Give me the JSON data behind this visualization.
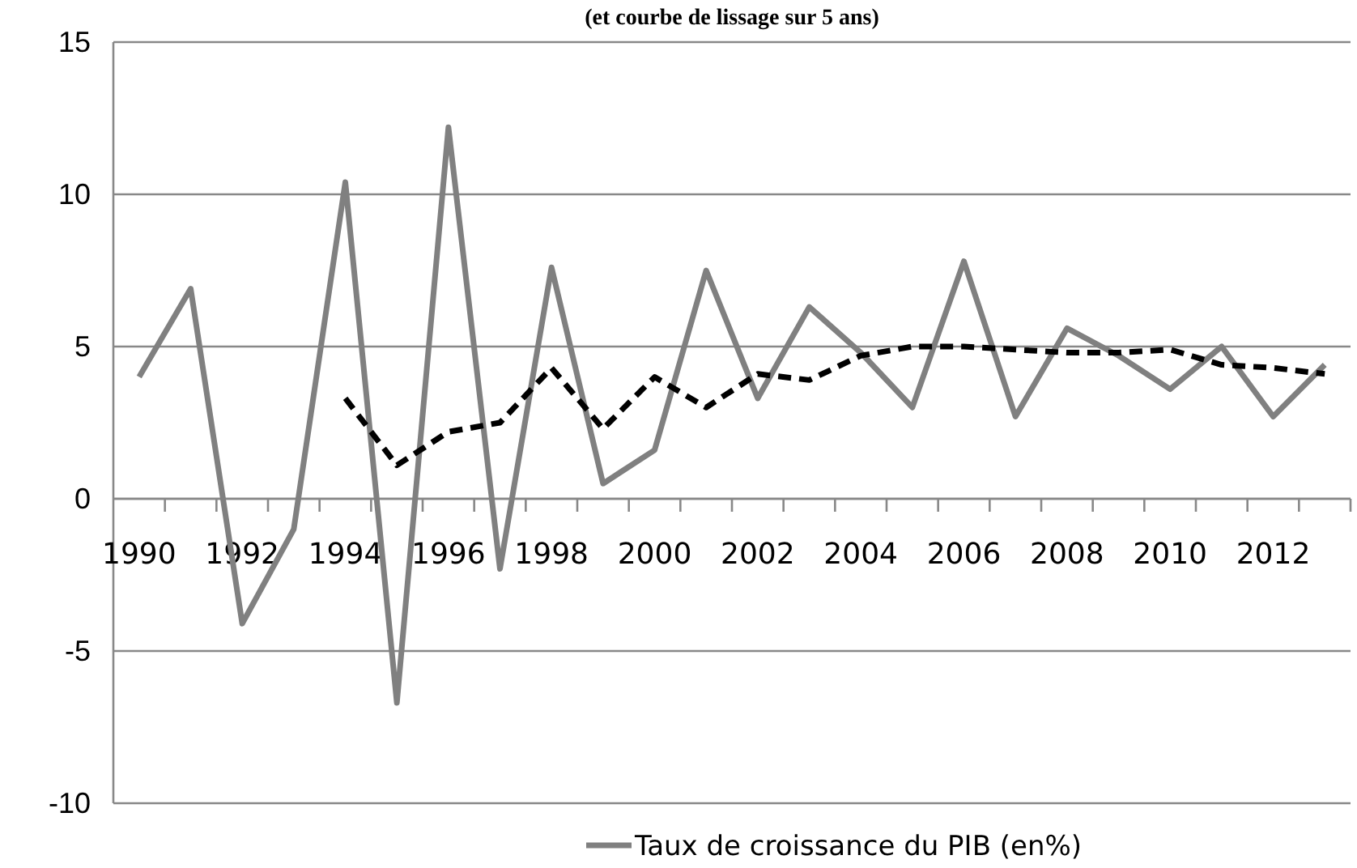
{
  "chart_data": {
    "type": "line",
    "title": "(et courbe de lissage sur 5 ans)",
    "categories": [
      "1990",
      null,
      "1992",
      null,
      "1994",
      null,
      "1996",
      null,
      "1998",
      null,
      "2000",
      null,
      "2002",
      null,
      "2004",
      null,
      "2006",
      null,
      "2008",
      null,
      "2010",
      null,
      "2012",
      null
    ],
    "series": [
      {
        "name": "Taux de croissance du PIB (en%)",
        "color": "#808080",
        "line_style": "solid",
        "values": [
          4.0,
          6.9,
          -4.1,
          -1.0,
          10.4,
          -6.7,
          12.2,
          -2.3,
          7.6,
          0.5,
          1.6,
          7.5,
          3.3,
          6.3,
          4.8,
          3.0,
          7.8,
          2.7,
          5.6,
          4.7,
          3.6,
          5.0,
          2.7,
          4.4
        ]
      },
      {
        "color": "#000000",
        "line_style": "dashed",
        "values": [
          null,
          null,
          null,
          null,
          3.3,
          1.1,
          2.2,
          2.5,
          4.3,
          2.3,
          4.0,
          3.0,
          4.1,
          3.9,
          4.7,
          5.0,
          5.0,
          4.9,
          4.8,
          4.8,
          4.9,
          4.4,
          4.3,
          4.1
        ]
      }
    ],
    "ylim": [
      -10,
      15
    ],
    "yticks": [
      -10,
      -5,
      0,
      5,
      10,
      15
    ],
    "grid": "y",
    "legend": "bottom",
    "marker": "none"
  }
}
